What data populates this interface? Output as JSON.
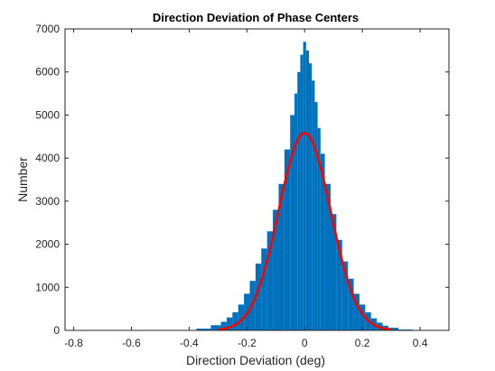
{
  "chart_data": {
    "type": "bar",
    "subtype": "histogram-with-fit",
    "title": "Direction Deviation of Phase Centers",
    "xlabel": "Direction Deviation (deg)",
    "ylabel": "Number",
    "xlim": [
      -0.83,
      0.5
    ],
    "ylim": [
      0,
      7000
    ],
    "xticks": [
      -0.8,
      -0.6,
      -0.4,
      -0.2,
      0,
      0.2,
      0.4
    ],
    "xtick_labels": [
      "-0.8",
      "-0.6",
      "-0.4",
      "-0.2",
      "0",
      "0.2",
      "0.4"
    ],
    "yticks": [
      0,
      1000,
      2000,
      3000,
      4000,
      5000,
      6000,
      7000
    ],
    "ytick_labels": [
      "0",
      "1000",
      "2000",
      "3000",
      "4000",
      "5000",
      "6000",
      "7000"
    ],
    "grid": false,
    "box": true,
    "series": [
      {
        "type": "histogram",
        "color": "#0072BD",
        "x": [
          -0.4,
          -0.35,
          -0.3,
          -0.28,
          -0.26,
          -0.24,
          -0.22,
          -0.2,
          -0.18,
          -0.16,
          -0.14,
          -0.12,
          -0.1,
          -0.08,
          -0.06,
          -0.04,
          -0.03,
          -0.02,
          -0.01,
          0.0,
          0.01,
          0.02,
          0.03,
          0.04,
          0.05,
          0.06,
          0.08,
          0.1,
          0.12,
          0.14,
          0.16,
          0.18,
          0.2,
          0.22,
          0.24,
          0.26,
          0.28,
          0.3,
          0.35,
          0.4
        ],
        "y": [
          10,
          40,
          120,
          200,
          300,
          420,
          600,
          850,
          1150,
          1550,
          1900,
          2300,
          2800,
          3400,
          4200,
          5000,
          5500,
          6000,
          6400,
          6700,
          6500,
          6200,
          5800,
          5300,
          4700,
          4100,
          3400,
          2700,
          2100,
          1600,
          1200,
          850,
          600,
          420,
          280,
          180,
          110,
          60,
          20,
          5
        ]
      },
      {
        "type": "line",
        "color": "#FF0000",
        "mean": 0.0,
        "std": 0.09,
        "peak": 4580
      }
    ]
  }
}
